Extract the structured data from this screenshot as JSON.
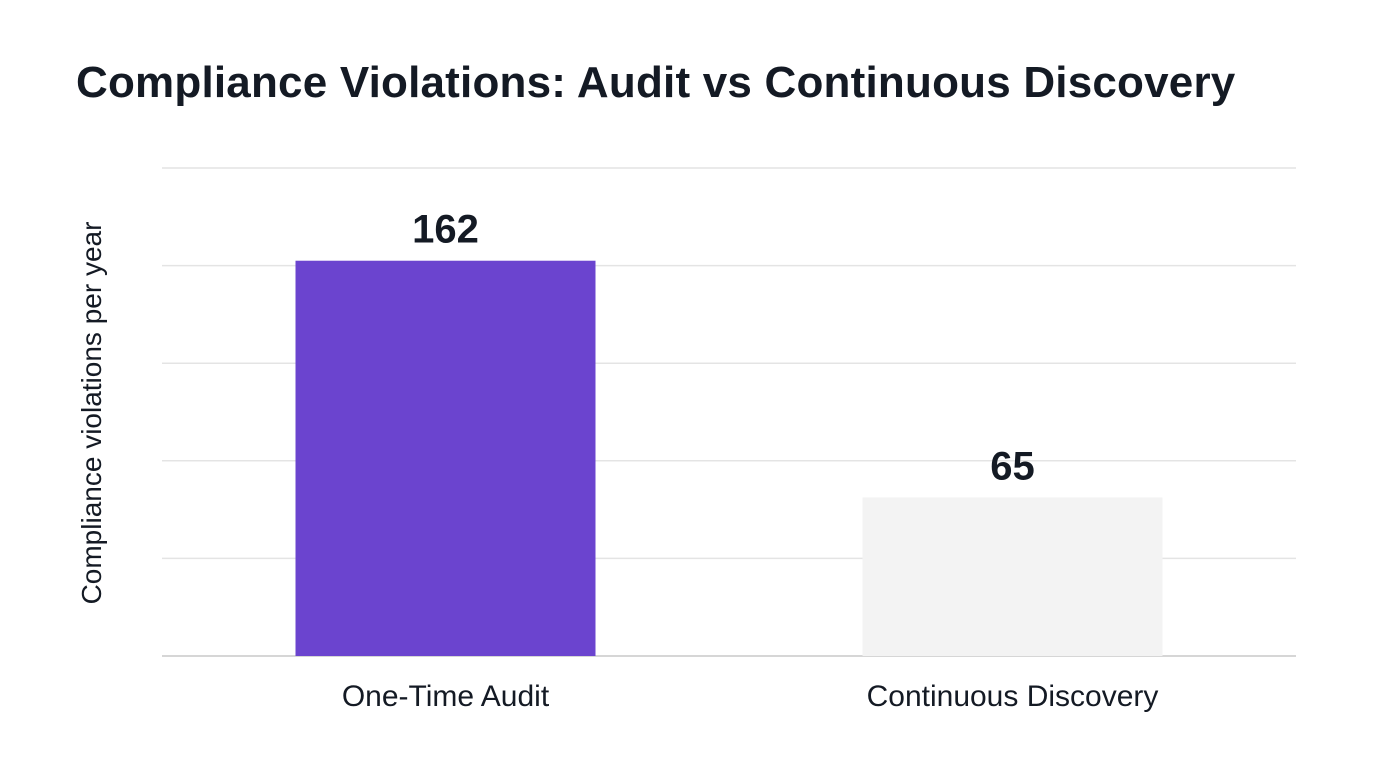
{
  "chart_data": {
    "type": "bar",
    "title": "Compliance Violations: Audit vs Continuous Discovery",
    "xlabel": "",
    "ylabel": "Compliance violations per year",
    "categories": [
      "One-Time Audit",
      "Continuous Discovery"
    ],
    "values": [
      162,
      65
    ],
    "ylim": [
      0,
      200
    ],
    "grid": true,
    "legend": "none",
    "data_labels": [
      "162",
      "65"
    ],
    "colors": [
      "#6b44cf",
      "#f3f3f3"
    ],
    "gridline_color": "#e4e4e4"
  }
}
